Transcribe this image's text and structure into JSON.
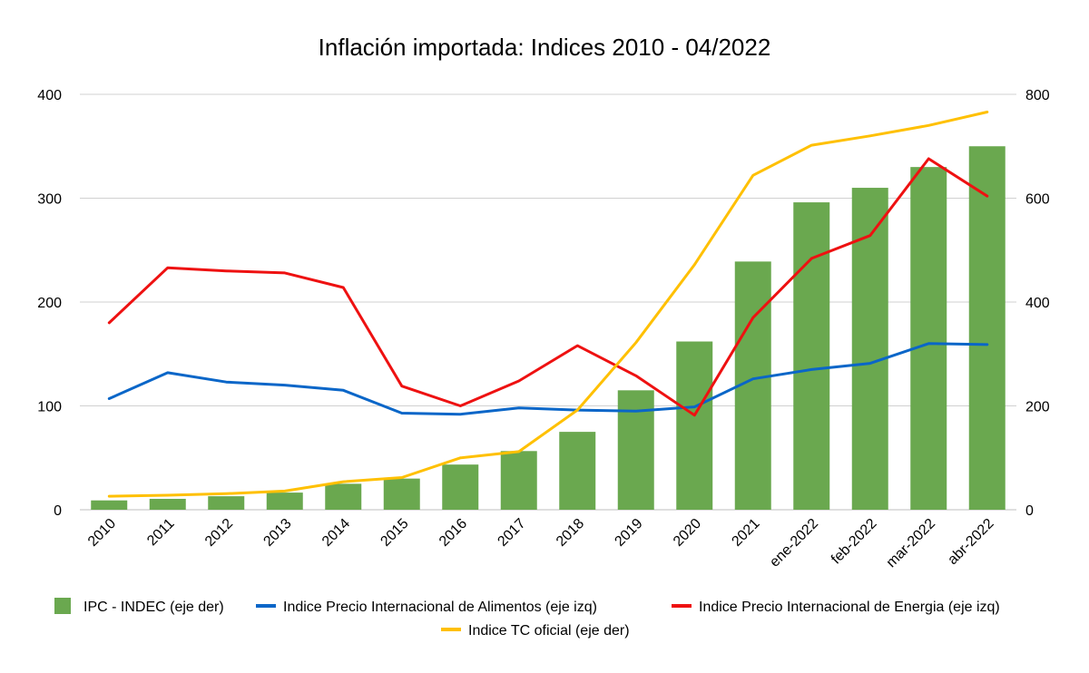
{
  "chart_data": {
    "type": "bar",
    "title": "Inflación importada: Indices 2010 - 04/2022",
    "categories": [
      "2010",
      "2011",
      "2012",
      "2013",
      "2014",
      "2015",
      "2016",
      "2017",
      "2018",
      "2019",
      "2020",
      "2021",
      "ene-2022",
      "feb-2022",
      "mar-2022",
      "abr-2022"
    ],
    "y_left": {
      "min": 0,
      "max": 400,
      "ticks": [
        "0",
        "100",
        "200",
        "300",
        "400"
      ]
    },
    "y_right": {
      "min": 0,
      "max": 800,
      "ticks": [
        "0",
        "200",
        "400",
        "600",
        "800"
      ]
    },
    "grid": true,
    "legend_position": "bottom",
    "series": [
      {
        "name": "IPC - INDEC (eje der)",
        "kind": "bar",
        "axis": "right",
        "color": "#6aa84f",
        "values": [
          18,
          21,
          26,
          33,
          50,
          60,
          87,
          113,
          150,
          230,
          324,
          478,
          592,
          620,
          660,
          700
        ]
      },
      {
        "name": "Indice Precio Internacional de Alimentos (eje izq)",
        "kind": "line",
        "axis": "left",
        "color": "#0a66c8",
        "values": [
          107,
          132,
          123,
          120,
          115,
          93,
          92,
          98,
          96,
          95,
          99,
          126,
          135,
          141,
          160,
          159
        ]
      },
      {
        "name": "Indice Precio Internacional de Energia (eje izq)",
        "kind": "line",
        "axis": "left",
        "color": "#ee1111",
        "values": [
          180,
          233,
          230,
          228,
          214,
          119,
          100,
          124,
          158,
          129,
          91,
          185,
          242,
          264,
          338,
          302
        ]
      },
      {
        "name": "Indice TC oficial (eje der)",
        "kind": "line",
        "axis": "right",
        "color": "#ffc000",
        "values": [
          26,
          28,
          31,
          36,
          54,
          62,
          100,
          112,
          192,
          322,
          472,
          644,
          702,
          720,
          740,
          766
        ]
      }
    ]
  }
}
